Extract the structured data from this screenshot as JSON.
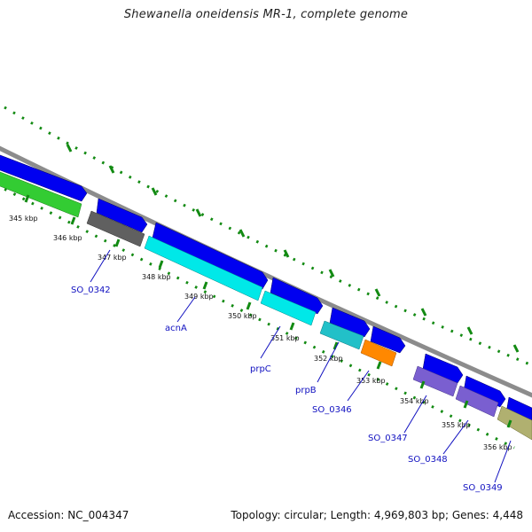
{
  "title": "Shewanella oneidensis MR-1, complete genome",
  "footer": {
    "accession": "Accession: NC_004347",
    "topology": "Topology: circular; Length: 4,969,803 bp; Genes: 4,448"
  },
  "colors": {
    "backbone": "#8c8c8c",
    "tick": "#128a12",
    "cds": "#0000f0",
    "label": "#1010c0"
  },
  "kbp_ticks": [
    "345 kbp",
    "346 kbp",
    "347 kbp",
    "348 kbp",
    "349 kbp",
    "350 kbp",
    "351 kbp",
    "352 kbp",
    "353 kbp",
    "354 kbp",
    "355 kbp",
    "356 kbp"
  ],
  "genes": [
    {
      "name": "SO_0342",
      "color": "#606060"
    },
    {
      "name": "acnA",
      "color": "#00e8e8"
    },
    {
      "name": "prpC",
      "color": "#00e8e8"
    },
    {
      "name": "prpB",
      "color": "#22c0c8"
    },
    {
      "name": "SO_0346",
      "color": "#ff8800"
    },
    {
      "name": "SO_0347",
      "color": "#7a5fd0"
    },
    {
      "name": "SO_0348",
      "color": "#7a5fd0"
    },
    {
      "name": "SO_0349",
      "color": "#b0b070"
    }
  ]
}
